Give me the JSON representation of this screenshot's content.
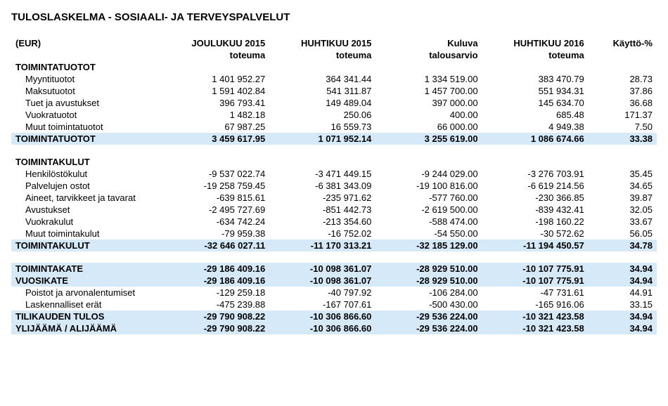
{
  "title": "TULOSLASKELMA - SOSIAALI- JA TERVEYSPALVELUT",
  "currency_label": "(EUR)",
  "columns": {
    "c1_a": "JOULUKUU 2015",
    "c1_b": "toteuma",
    "c2_a": "HUHTIKUU 2015",
    "c2_b": "toteuma",
    "c3_a": "Kuluva",
    "c3_b": "talousarvio",
    "c4_a": "HUHTIKUU 2016",
    "c4_b": "toteuma",
    "c5_a": "Käyttö-%",
    "c5_b": ""
  },
  "section1_header": "TOIMINTATUOTOT",
  "rows1": [
    {
      "label": "Myyntituotot",
      "v1": "1 401 952.27",
      "v2": "364 341.44",
      "v3": "1 334 519.00",
      "v4": "383 470.79",
      "pct": "28.73"
    },
    {
      "label": "Maksutuotot",
      "v1": "1 591 402.84",
      "v2": "541 311.87",
      "v3": "1 457 700.00",
      "v4": "551 934.31",
      "pct": "37.86"
    },
    {
      "label": "Tuet ja avustukset",
      "v1": "396 793.41",
      "v2": "149 489.04",
      "v3": "397 000.00",
      "v4": "145 634.70",
      "pct": "36.68"
    },
    {
      "label": "Vuokratuotot",
      "v1": "1 482.18",
      "v2": "250.06",
      "v3": "400.00",
      "v4": "685.48",
      "pct": "171.37"
    },
    {
      "label": "Muut toimintatuotot",
      "v1": "67 987.25",
      "v2": "16 559.73",
      "v3": "66 000.00",
      "v4": "4 949.38",
      "pct": "7.50"
    }
  ],
  "total1": {
    "label": "TOIMINTATUOTOT",
    "v1": "3 459 617.95",
    "v2": "1 071 952.14",
    "v3": "3 255 619.00",
    "v4": "1 086 674.66",
    "pct": "33.38"
  },
  "section2_header": "TOIMINTAKULUT",
  "rows2": [
    {
      "label": "Henkilöstökulut",
      "v1": "-9 537 022.74",
      "v2": "-3 471 449.15",
      "v3": "-9 244 029.00",
      "v4": "-3 276 703.91",
      "pct": "35.45"
    },
    {
      "label": "Palvelujen ostot",
      "v1": "-19 258 759.45",
      "v2": "-6 381 343.09",
      "v3": "-19 100 816.00",
      "v4": "-6 619 214.56",
      "pct": "34.65"
    },
    {
      "label": "Aineet, tarvikkeet ja tavarat",
      "v1": "-639 815.61",
      "v2": "-235 971.62",
      "v3": "-577 760.00",
      "v4": "-230 366.85",
      "pct": "39.87"
    },
    {
      "label": "Avustukset",
      "v1": "-2 495 727.69",
      "v2": "-851 442.73",
      "v3": "-2 619 500.00",
      "v4": "-839 432.41",
      "pct": "32.05"
    },
    {
      "label": "Vuokrakulut",
      "v1": "-634 742.24",
      "v2": "-213 354.60",
      "v3": "-588 474.00",
      "v4": "-198 160.22",
      "pct": "33.67"
    },
    {
      "label": "Muut toimintakulut",
      "v1": "-79 959.38",
      "v2": "-16 752.02",
      "v3": "-54 550.00",
      "v4": "-30 572.62",
      "pct": "56.05"
    }
  ],
  "total2": {
    "label": "TOIMINTAKULUT",
    "v1": "-32 646 027.11",
    "v2": "-11 170 313.21",
    "v3": "-32 185 129.00",
    "v4": "-11 194 450.57",
    "pct": "34.78"
  },
  "summary": [
    {
      "label": "TOIMINTAKATE",
      "v1": "-29 186 409.16",
      "v2": "-10 098 361.07",
      "v3": "-28 929 510.00",
      "v4": "-10 107 775.91",
      "pct": "34.94",
      "hl": true,
      "bold": true
    },
    {
      "label": "VUOSIKATE",
      "v1": "-29 186 409.16",
      "v2": "-10 098 361.07",
      "v3": "-28 929 510.00",
      "v4": "-10 107 775.91",
      "pct": "34.94",
      "hl": true,
      "bold": true
    },
    {
      "label": "Poistot ja arvonalentumiset",
      "v1": "-129 259.18",
      "v2": "-40 797.92",
      "v3": "-106 284.00",
      "v4": "-47 731.61",
      "pct": "44.91",
      "indent": true
    },
    {
      "label": "Laskennalliset erät",
      "v1": "-475 239.88",
      "v2": "-167 707.61",
      "v3": "-500 430.00",
      "v4": "-165 916.06",
      "pct": "33.15",
      "indent": true
    },
    {
      "label": "TILIKAUDEN TULOS",
      "v1": "-29 790 908.22",
      "v2": "-10 306 866.60",
      "v3": "-29 536 224.00",
      "v4": "-10 321 423.58",
      "pct": "34.94",
      "hl": true,
      "bold": true
    },
    {
      "label": "YLIJÄÄMÄ / ALIJÄÄMÄ",
      "v1": "-29 790 908.22",
      "v2": "-10 306 866.60",
      "v3": "-29 536 224.00",
      "v4": "-10 321 423.58",
      "pct": "34.94",
      "hl": true,
      "bold": true
    }
  ],
  "colors": {
    "highlight": "#d6e9f8",
    "background": "#ffffff",
    "text": "#000000"
  }
}
